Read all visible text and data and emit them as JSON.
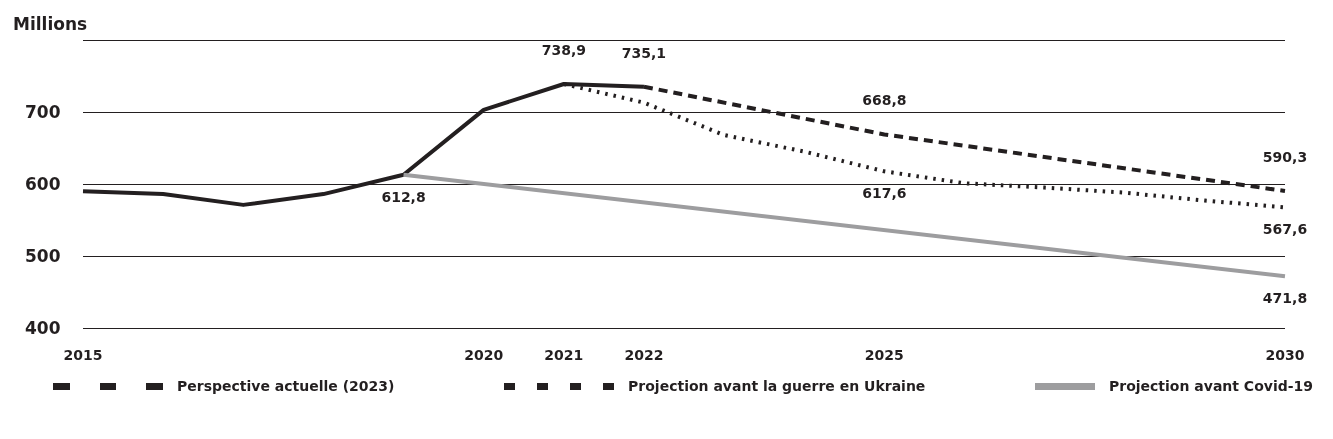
{
  "chart_data": {
    "type": "line",
    "ylabel": "Millions",
    "xlim": [
      2015,
      2030
    ],
    "xticks": [
      2015,
      2020,
      2021,
      2022,
      2025,
      2030
    ],
    "ylim": [
      400,
      800
    ],
    "yticks": [
      400,
      500,
      600,
      700,
      {
        "value": 800,
        "label": null
      }
    ],
    "grid": "y",
    "legend": "bottom",
    "marker": "none",
    "series": [
      {
        "color": "#231f20",
        "line_style": "solid",
        "x": [
          2015,
          2016,
          2017,
          2018,
          2019,
          2020,
          2021,
          2022
        ],
        "values": [
          590,
          586,
          571,
          586,
          612.8,
          703,
          738.9,
          735.1
        ],
        "value_labels": [
          null,
          null,
          null,
          null,
          "612,8",
          null,
          "738,9",
          "735,1"
        ]
      },
      {
        "name": "Perspective actuelle (2023)",
        "color": "#231f20",
        "line_style": "dashed",
        "x": [
          2022,
          2025,
          2030
        ],
        "values": [
          735.1,
          668.8,
          590.3
        ],
        "value_labels": [
          null,
          "668,8",
          "590,3"
        ]
      },
      {
        "name": "Projection avant la guerre en Ukraine",
        "color": "#231f20",
        "line_style": "dotted",
        "x": [
          2021,
          2022,
          2023,
          2024,
          2025,
          2026,
          2027,
          2028,
          2029,
          2030
        ],
        "values": [
          738.9,
          713,
          668,
          645,
          617.6,
          601,
          595,
          588,
          577,
          567.6
        ],
        "value_labels": [
          null,
          null,
          null,
          null,
          "617,6",
          null,
          null,
          null,
          null,
          "567,6"
        ]
      },
      {
        "name": "Projection avant Covid-19",
        "color": "#9d9d9f",
        "line_style": "solid",
        "x": [
          2019,
          2030
        ],
        "values": [
          612.8,
          471.8
        ],
        "value_labels": [
          null,
          "471,8"
        ]
      }
    ]
  }
}
